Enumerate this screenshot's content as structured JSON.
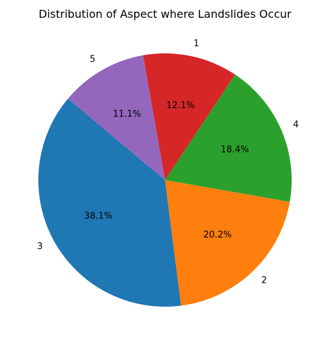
{
  "chart_data": {
    "type": "pie",
    "title": "Distribution of Aspect where Landslides Occur",
    "start_angle_deg": 140,
    "direction": "counterclockwise",
    "slices": [
      {
        "label": "3",
        "value": 38.1,
        "pct_text": "38.1%",
        "color": "#1f77b4"
      },
      {
        "label": "2",
        "value": 20.2,
        "pct_text": "20.2%",
        "color": "#ff7f0e"
      },
      {
        "label": "4",
        "value": 18.4,
        "pct_text": "18.4%",
        "color": "#2ca02c"
      },
      {
        "label": "1",
        "value": 12.1,
        "pct_text": "12.1%",
        "color": "#d62728"
      },
      {
        "label": "5",
        "value": 11.1,
        "pct_text": "11.1%",
        "color": "#9467bd"
      }
    ]
  }
}
